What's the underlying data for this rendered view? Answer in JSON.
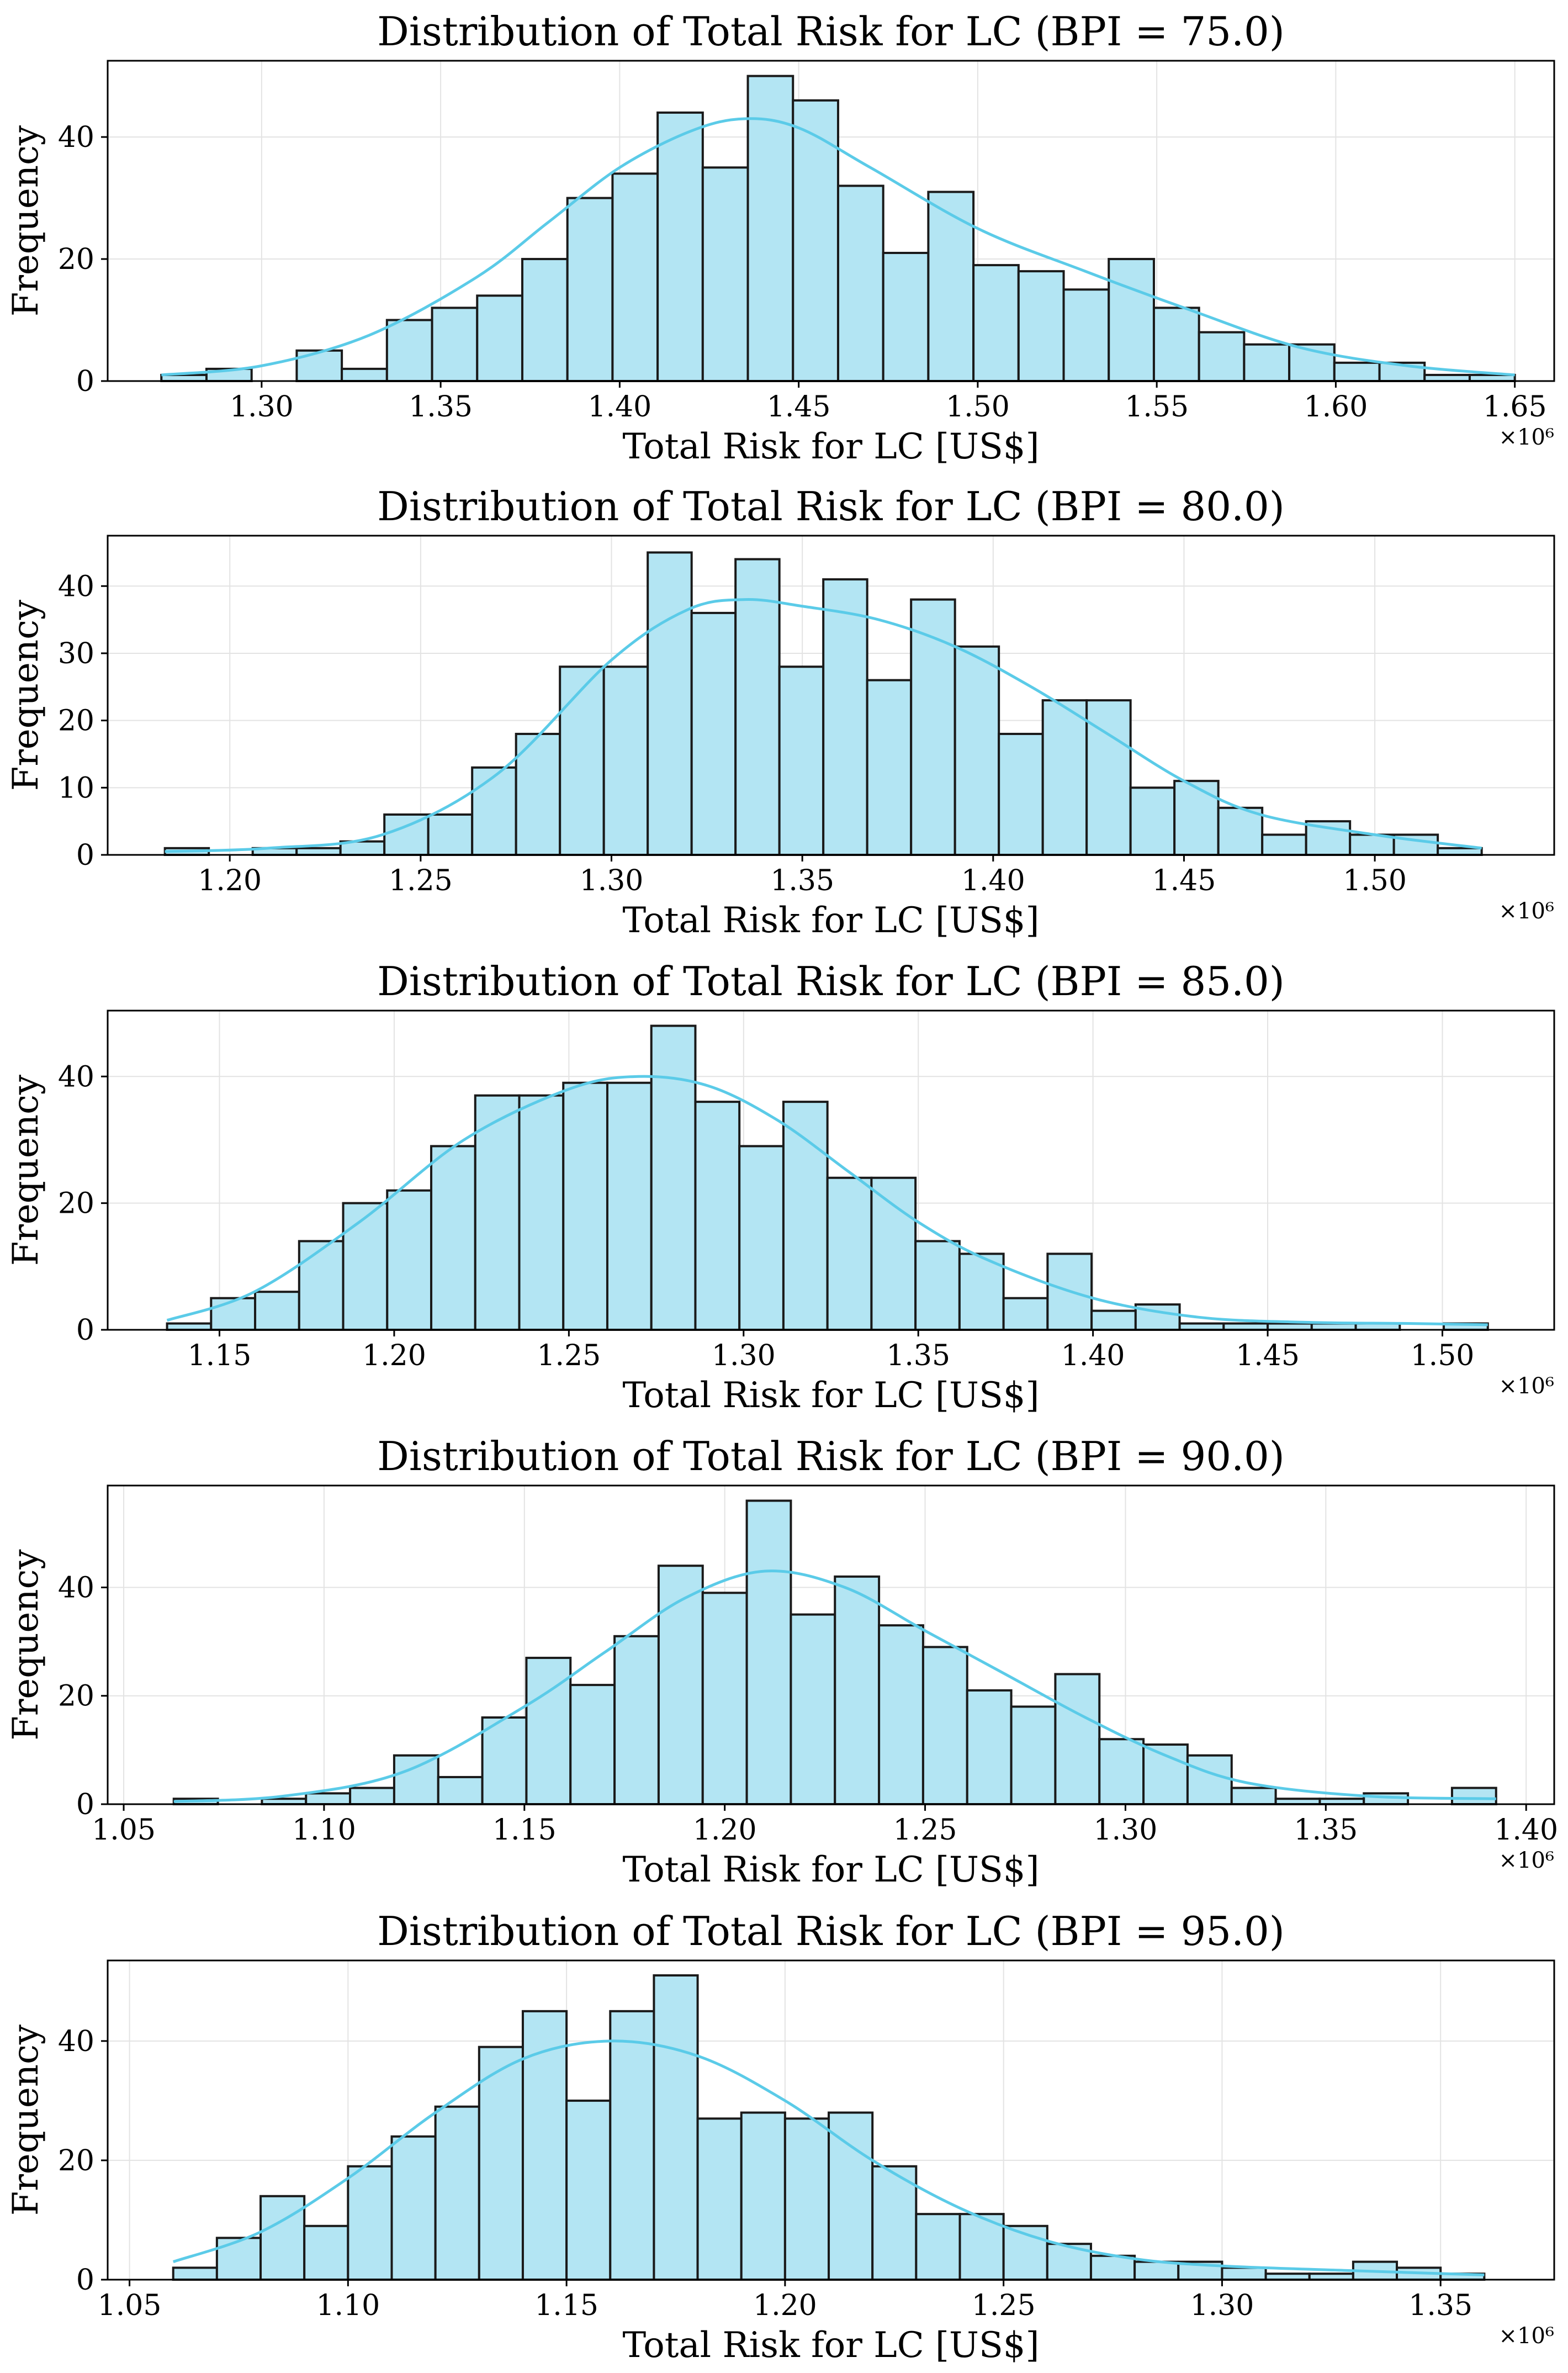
{
  "style": {
    "bar_fill": "#b3e5f3",
    "bar_edge": "#1a1a1a",
    "kde_color": "#5bcbe8",
    "grid_color": "#e3e3e3",
    "frame_color": "#000000"
  },
  "chart_data": [
    {
      "type": "bar",
      "title": "Distribution of Total Risk for LC (BPI = 75.0)",
      "xlabel": "Total Risk for LC [US$]",
      "ylabel": "Frequency",
      "x_offset_label": "×10⁶",
      "xlim": [
        1.257,
        1.661
      ],
      "ylim": [
        0,
        52.5
      ],
      "x_ticks": [
        1.3,
        1.35,
        1.4,
        1.45,
        1.5,
        1.55,
        1.6,
        1.65
      ],
      "x_tick_labels": [
        "1.30",
        "1.35",
        "1.40",
        "1.45",
        "1.50",
        "1.55",
        "1.60",
        "1.65"
      ],
      "y_ticks": [
        0,
        20,
        40
      ],
      "y_tick_labels": [
        "0",
        "20",
        "40"
      ],
      "bin_edges": [
        1.272,
        1.2846,
        1.2972,
        1.3098,
        1.3224,
        1.335,
        1.3476,
        1.3602,
        1.3728,
        1.3854,
        1.398,
        1.4106,
        1.4232,
        1.4358,
        1.4484,
        1.461,
        1.4736,
        1.4862,
        1.4988,
        1.5114,
        1.524,
        1.5366,
        1.5492,
        1.5618,
        1.5744,
        1.587,
        1.5996,
        1.6122,
        1.6248,
        1.6374,
        1.65
      ],
      "counts": [
        1,
        2,
        0,
        5,
        2,
        10,
        12,
        14,
        20,
        30,
        34,
        44,
        35,
        50,
        46,
        32,
        21,
        31,
        19,
        18,
        15,
        20,
        12,
        8,
        6,
        6,
        3,
        3,
        1,
        1
      ],
      "kde": {
        "x": [
          1.272,
          1.3,
          1.33,
          1.36,
          1.38,
          1.4,
          1.42,
          1.435,
          1.45,
          1.47,
          1.5,
          1.53,
          1.56,
          1.59,
          1.62,
          1.65
        ],
        "y": [
          1.0,
          2.5,
          7.5,
          17.0,
          26.0,
          35.0,
          41.0,
          43.0,
          41.5,
          35.0,
          25.0,
          18.0,
          11.5,
          5.5,
          2.5,
          1.0
        ]
      }
    },
    {
      "type": "bar",
      "title": "Distribution of Total Risk for LC (BPI = 80.0)",
      "xlabel": "Total Risk for LC [US$]",
      "ylabel": "Frequency",
      "x_offset_label": "×10⁶",
      "xlim": [
        1.168,
        1.547
      ],
      "ylim": [
        0,
        47.5
      ],
      "x_ticks": [
        1.2,
        1.25,
        1.3,
        1.35,
        1.4,
        1.45,
        1.5
      ],
      "x_tick_labels": [
        "1.20",
        "1.25",
        "1.30",
        "1.35",
        "1.40",
        "1.45",
        "1.50"
      ],
      "y_ticks": [
        0,
        10,
        20,
        30,
        40
      ],
      "y_tick_labels": [
        "0",
        "10",
        "20",
        "30",
        "40"
      ],
      "bin_edges": [
        1.183,
        1.1945,
        1.206,
        1.2175,
        1.229,
        1.2405,
        1.252,
        1.2635,
        1.275,
        1.2865,
        1.298,
        1.3095,
        1.321,
        1.3325,
        1.344,
        1.3555,
        1.367,
        1.3785,
        1.39,
        1.4015,
        1.413,
        1.4245,
        1.436,
        1.4475,
        1.459,
        1.4705,
        1.482,
        1.4935,
        1.505,
        1.5165,
        1.528
      ],
      "counts": [
        1,
        0,
        1,
        1,
        2,
        6,
        6,
        13,
        18,
        28,
        28,
        45,
        36,
        44,
        28,
        41,
        26,
        38,
        31,
        18,
        23,
        23,
        10,
        11,
        7,
        3,
        5,
        3,
        3,
        1
      ],
      "kde": {
        "x": [
          1.183,
          1.21,
          1.24,
          1.27,
          1.3,
          1.32,
          1.335,
          1.35,
          1.37,
          1.39,
          1.41,
          1.43,
          1.45,
          1.47,
          1.5,
          1.528
        ],
        "y": [
          0.5,
          1.0,
          3.0,
          12.0,
          29.0,
          36.5,
          38.0,
          37.0,
          35.0,
          31.0,
          25.0,
          18.0,
          11.0,
          6.0,
          3.0,
          1.0
        ]
      }
    },
    {
      "type": "bar",
      "title": "Distribution of Total Risk for LC (BPI = 85.0)",
      "xlabel": "Total Risk for LC [US$]",
      "ylabel": "Frequency",
      "x_offset_label": "×10⁶",
      "xlim": [
        1.118,
        1.532
      ],
      "ylim": [
        0,
        50.4
      ],
      "x_ticks": [
        1.15,
        1.2,
        1.25,
        1.3,
        1.35,
        1.4,
        1.45,
        1.5
      ],
      "x_tick_labels": [
        "1.15",
        "1.20",
        "1.25",
        "1.30",
        "1.35",
        "1.40",
        "1.45",
        "1.50"
      ],
      "y_ticks": [
        0,
        20,
        40
      ],
      "y_tick_labels": [
        "0",
        "20",
        "40"
      ],
      "bin_edges": [
        1.135,
        1.1476,
        1.1602,
        1.1728,
        1.1854,
        1.198,
        1.2106,
        1.2232,
        1.2358,
        1.2484,
        1.261,
        1.2736,
        1.2862,
        1.2988,
        1.3114,
        1.324,
        1.3366,
        1.3492,
        1.3618,
        1.3744,
        1.387,
        1.3996,
        1.4122,
        1.4248,
        1.4374,
        1.45,
        1.4626,
        1.4752,
        1.4878,
        1.5004,
        1.513
      ],
      "counts": [
        1,
        5,
        6,
        14,
        20,
        22,
        29,
        37,
        37,
        39,
        39,
        48,
        36,
        29,
        36,
        24,
        24,
        14,
        12,
        5,
        12,
        3,
        4,
        1,
        1,
        1,
        1,
        1,
        0,
        1
      ],
      "kde": {
        "x": [
          1.135,
          1.16,
          1.19,
          1.22,
          1.25,
          1.27,
          1.29,
          1.31,
          1.33,
          1.35,
          1.37,
          1.4,
          1.43,
          1.46,
          1.49,
          1.513
        ],
        "y": [
          1.5,
          6.0,
          17.0,
          30.0,
          38.0,
          40.0,
          38.5,
          33.0,
          25.0,
          17.0,
          11.0,
          5.0,
          2.0,
          1.2,
          1.0,
          0.8
        ]
      }
    },
    {
      "type": "bar",
      "title": "Distribution of Total Risk for LC (BPI = 90.0)",
      "xlabel": "Total Risk for LC [US$]",
      "ylabel": "Frequency",
      "x_offset_label": "×10⁶",
      "xlim": [
        1.046,
        1.407
      ],
      "ylim": [
        0,
        58.8
      ],
      "x_ticks": [
        1.05,
        1.1,
        1.15,
        1.2,
        1.25,
        1.3,
        1.35,
        1.4
      ],
      "x_tick_labels": [
        "1.05",
        "1.10",
        "1.15",
        "1.20",
        "1.25",
        "1.30",
        "1.35",
        "1.40"
      ],
      "y_ticks": [
        0,
        20,
        40
      ],
      "y_tick_labels": [
        "0",
        "20",
        "40"
      ],
      "bin_edges": [
        1.0625,
        1.0735,
        1.0845,
        1.0955,
        1.1065,
        1.1175,
        1.1285,
        1.1395,
        1.1505,
        1.1615,
        1.1725,
        1.1835,
        1.1945,
        1.2055,
        1.2165,
        1.2275,
        1.2385,
        1.2495,
        1.2605,
        1.2715,
        1.2825,
        1.2935,
        1.3045,
        1.3155,
        1.3265,
        1.3375,
        1.3485,
        1.3595,
        1.3705,
        1.3815,
        1.3925
      ],
      "counts": [
        1,
        0,
        1,
        2,
        3,
        9,
        5,
        16,
        27,
        22,
        31,
        44,
        39,
        56,
        35,
        42,
        33,
        29,
        21,
        18,
        24,
        12,
        11,
        9,
        3,
        1,
        1,
        2,
        0,
        3
      ],
      "kde": {
        "x": [
          1.0625,
          1.09,
          1.12,
          1.15,
          1.17,
          1.19,
          1.21,
          1.23,
          1.25,
          1.27,
          1.29,
          1.31,
          1.33,
          1.36,
          1.3925
        ],
        "y": [
          0.5,
          1.5,
          6.0,
          18.0,
          28.0,
          38.0,
          43.0,
          40.0,
          32.0,
          24.0,
          16.0,
          9.0,
          4.0,
          1.5,
          1.0
        ]
      }
    },
    {
      "type": "bar",
      "title": "Distribution of Total Risk for LC (BPI = 95.0)",
      "xlabel": "Total Risk for LC [US$]",
      "ylabel": "Frequency",
      "x_offset_label": "×10⁶",
      "xlim": [
        1.045,
        1.376
      ],
      "ylim": [
        0,
        53.5
      ],
      "x_ticks": [
        1.05,
        1.1,
        1.15,
        1.2,
        1.25,
        1.3,
        1.35
      ],
      "x_tick_labels": [
        "1.05",
        "1.10",
        "1.15",
        "1.20",
        "1.25",
        "1.30",
        "1.35"
      ],
      "y_ticks": [
        0,
        20,
        40
      ],
      "y_tick_labels": [
        "0",
        "20",
        "40"
      ],
      "bin_edges": [
        1.06,
        1.07,
        1.08,
        1.09,
        1.1,
        1.11,
        1.12,
        1.13,
        1.14,
        1.15,
        1.16,
        1.17,
        1.18,
        1.19,
        1.2,
        1.21,
        1.22,
        1.23,
        1.24,
        1.25,
        1.26,
        1.27,
        1.28,
        1.29,
        1.3,
        1.31,
        1.32,
        1.33,
        1.34,
        1.35,
        1.36
      ],
      "counts": [
        2,
        7,
        14,
        9,
        19,
        24,
        29,
        39,
        45,
        30,
        45,
        51,
        27,
        28,
        27,
        28,
        19,
        11,
        11,
        9,
        6,
        4,
        3,
        3,
        2,
        1,
        1,
        3,
        2,
        1
      ],
      "kde": {
        "x": [
          1.06,
          1.08,
          1.1,
          1.12,
          1.14,
          1.16,
          1.18,
          1.2,
          1.22,
          1.24,
          1.26,
          1.28,
          1.3,
          1.33,
          1.36
        ],
        "y": [
          3.0,
          8.0,
          17.0,
          28.0,
          37.0,
          40.0,
          37.5,
          30.0,
          20.0,
          12.0,
          6.5,
          3.5,
          2.3,
          1.5,
          0.8
        ]
      }
    }
  ]
}
